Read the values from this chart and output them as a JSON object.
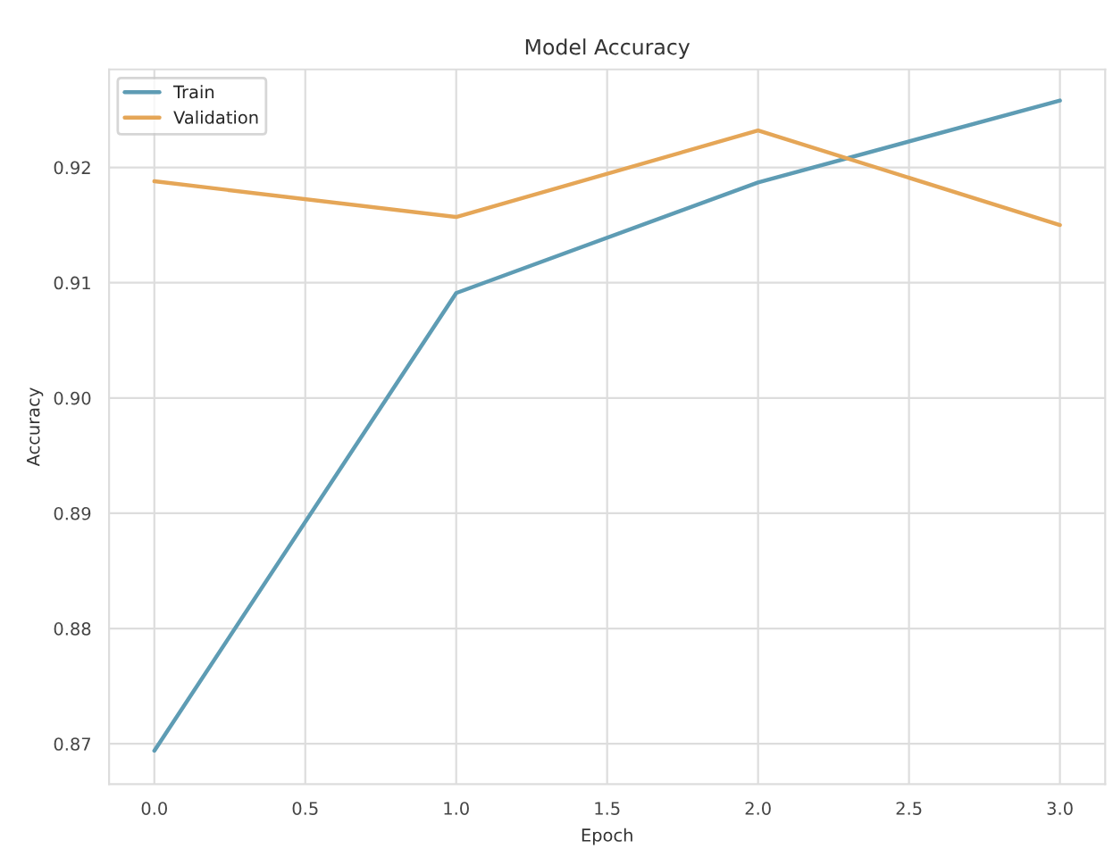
{
  "chart_data": {
    "type": "line",
    "title": "Model Accuracy",
    "xlabel": "Epoch",
    "ylabel": "Accuracy",
    "x": [
      0,
      1,
      2,
      3
    ],
    "series": [
      {
        "name": "Train",
        "color": "#5e9cb4",
        "values": [
          0.8694,
          0.9091,
          0.9187,
          0.9258
        ]
      },
      {
        "name": "Validation",
        "color": "#e5a657",
        "values": [
          0.9188,
          0.9157,
          0.9232,
          0.915
        ]
      }
    ],
    "xlim": [
      -0.15,
      3.15
    ],
    "xticks": [
      {
        "value": 0,
        "label": "0.0"
      },
      {
        "value": 0.5,
        "label": "0.5"
      },
      {
        "value": 1,
        "label": "1.0"
      },
      {
        "value": 1.5,
        "label": "1.5"
      },
      {
        "value": 2,
        "label": "2.0"
      },
      {
        "value": 2.5,
        "label": "2.5"
      },
      {
        "value": 3,
        "label": "3.0"
      }
    ],
    "ylim": [
      0.8665,
      0.9285
    ],
    "yticks": [
      {
        "value": 0.87,
        "label": "0.87"
      },
      {
        "value": 0.88,
        "label": "0.88"
      },
      {
        "value": 0.89,
        "label": "0.89"
      },
      {
        "value": 0.9,
        "label": "0.90"
      },
      {
        "value": 0.91,
        "label": "0.91"
      },
      {
        "value": 0.92,
        "label": "0.92"
      }
    ],
    "grid": true,
    "legend": "top left",
    "marker": "none",
    "line_style": "solid"
  }
}
